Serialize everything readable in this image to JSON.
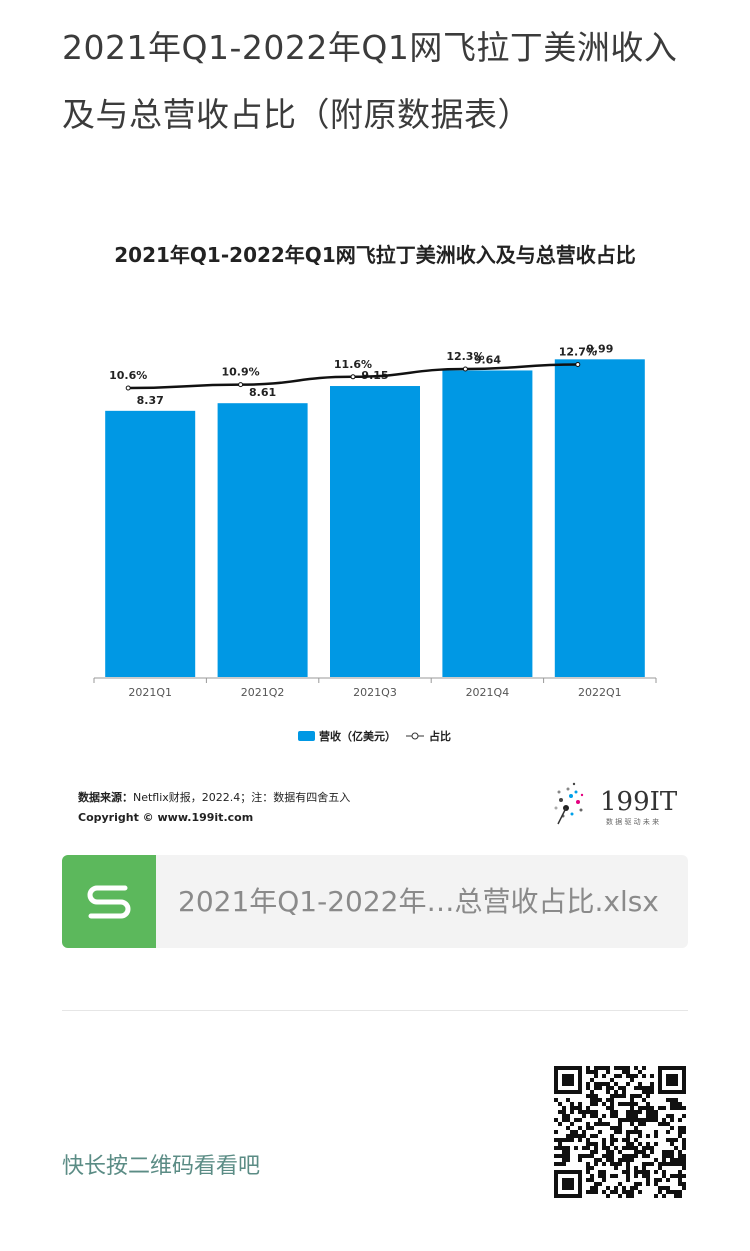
{
  "article": {
    "title": "2021年Q1-2022年Q1网飞拉丁美洲收入及与总营收占比（附原数据表）"
  },
  "chart_data": {
    "type": "bar",
    "title": "2021年Q1-2022年Q1网飞拉丁美洲收入及与总营收占比",
    "categories": [
      "2021Q1",
      "2021Q2",
      "2021Q3",
      "2021Q4",
      "2022Q1"
    ],
    "series": [
      {
        "name": "营收（亿美元）",
        "type": "bar",
        "values": [
          8.37,
          8.61,
          9.15,
          9.64,
          9.99
        ],
        "color": "#0098e4"
      },
      {
        "name": "占比",
        "type": "line",
        "values": [
          10.6,
          10.9,
          11.6,
          12.3,
          12.7
        ],
        "labels": [
          "10.6%",
          "10.9%",
          "11.6%",
          "12.3%",
          "12.7%"
        ],
        "color": "#111111"
      }
    ],
    "grid": false,
    "legend_position": "bottom"
  },
  "source": {
    "label": "数据来源：",
    "text": "Netflix财报，2022.4；注：数据有四舍五入",
    "copyright": "Copyright © www.199it.com"
  },
  "brand": {
    "name": "199IT",
    "slogan": "数 据 驱 动 未 来"
  },
  "attachment": {
    "icon": "spreadsheet-s-icon",
    "file_name": "2021年Q1-2022年…总营收占比.xlsx",
    "color": "#5cb85c"
  },
  "qr": {
    "hint": "快长按二维码看看吧"
  }
}
